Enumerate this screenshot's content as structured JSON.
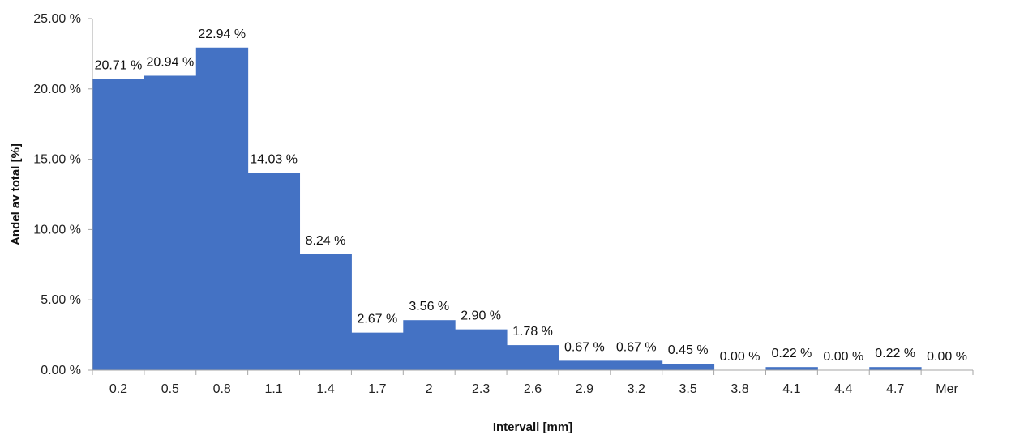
{
  "chart_data": {
    "type": "bar",
    "title": "",
    "xlabel": "Intervall [mm]",
    "ylabel": "Andel av total [%]",
    "ylim": [
      0,
      25
    ],
    "yticks": [
      "0.00 %",
      "5.00 %",
      "10.00 %",
      "15.00 %",
      "20.00 %",
      "25.00 %"
    ],
    "categories": [
      "0.2",
      "0.5",
      "0.8",
      "1.1",
      "1.4",
      "1.7",
      "2",
      "2.3",
      "2.6",
      "2.9",
      "3.2",
      "3.5",
      "3.8",
      "4.1",
      "4.4",
      "4.7",
      "Mer"
    ],
    "values": [
      20.71,
      20.94,
      22.94,
      14.03,
      8.24,
      2.67,
      3.56,
      2.9,
      1.78,
      0.67,
      0.67,
      0.45,
      0.0,
      0.22,
      0.0,
      0.22,
      0.0
    ],
    "data_labels": [
      "20.71 %",
      "20.94 %",
      "22.94 %",
      "14.03 %",
      "8.24 %",
      "2.67 %",
      "3.56 %",
      "2.90 %",
      "1.78 %",
      "0.67 %",
      "0.67 %",
      "0.45 %",
      "0.00 %",
      "0.22 %",
      "0.00 %",
      "0.22 %",
      "0.00 %"
    ],
    "bar_color": "#4472C4",
    "grid": false,
    "legend": "none"
  }
}
